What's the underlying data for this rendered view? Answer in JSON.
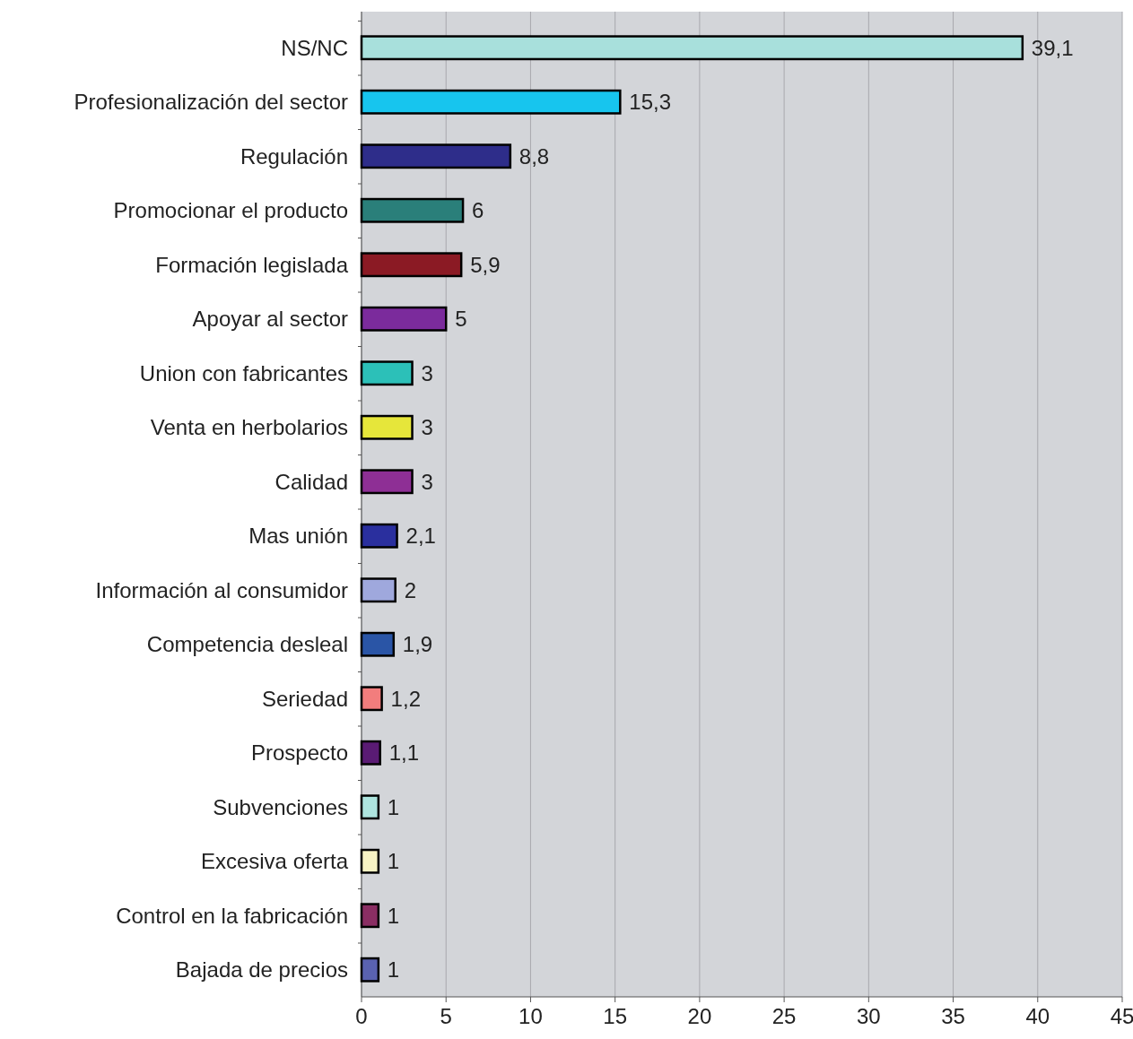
{
  "chart_data": {
    "type": "bar",
    "orientation": "horizontal",
    "categories": [
      "NS/NC",
      "Profesionalización del sector",
      "Regulación",
      "Promocionar el producto",
      "Formación legislada",
      "Apoyar al sector",
      "Union con fabricantes",
      "Venta en herbolarios",
      "Calidad",
      "Mas unión",
      "Información al consumidor",
      "Competencia desleal",
      "Seriedad",
      "Prospecto",
      "Subvenciones",
      "Excesiva oferta",
      "Control en la fabricación",
      "Bajada de precios"
    ],
    "values": [
      39.1,
      15.3,
      8.8,
      6,
      5.9,
      5,
      3,
      3,
      3,
      2.1,
      2,
      1.9,
      1.2,
      1.1,
      1,
      1,
      1,
      1
    ],
    "value_labels": [
      "39,1",
      "15,3",
      "8,8",
      "6",
      "5,9",
      "5",
      "3",
      "3",
      "3",
      "2,1",
      "2",
      "1,9",
      "1,2",
      "1,1",
      "1",
      "1",
      "1",
      "1"
    ],
    "colors": [
      "#a8e0dc",
      "#17c5ee",
      "#2e2d8a",
      "#2a7f7a",
      "#8b1a24",
      "#7b2b9c",
      "#2cc0b8",
      "#e6e63a",
      "#8e2f95",
      "#2a2f9e",
      "#9fa8dd",
      "#2a55a6",
      "#f27d7d",
      "#5a1b74",
      "#aee5df",
      "#f7f3c4",
      "#8a2e63",
      "#5a62b0"
    ],
    "xlim": [
      0,
      45
    ],
    "xticks": [
      0,
      5,
      10,
      15,
      20,
      25,
      30,
      35,
      40,
      45
    ],
    "grid": "x"
  }
}
